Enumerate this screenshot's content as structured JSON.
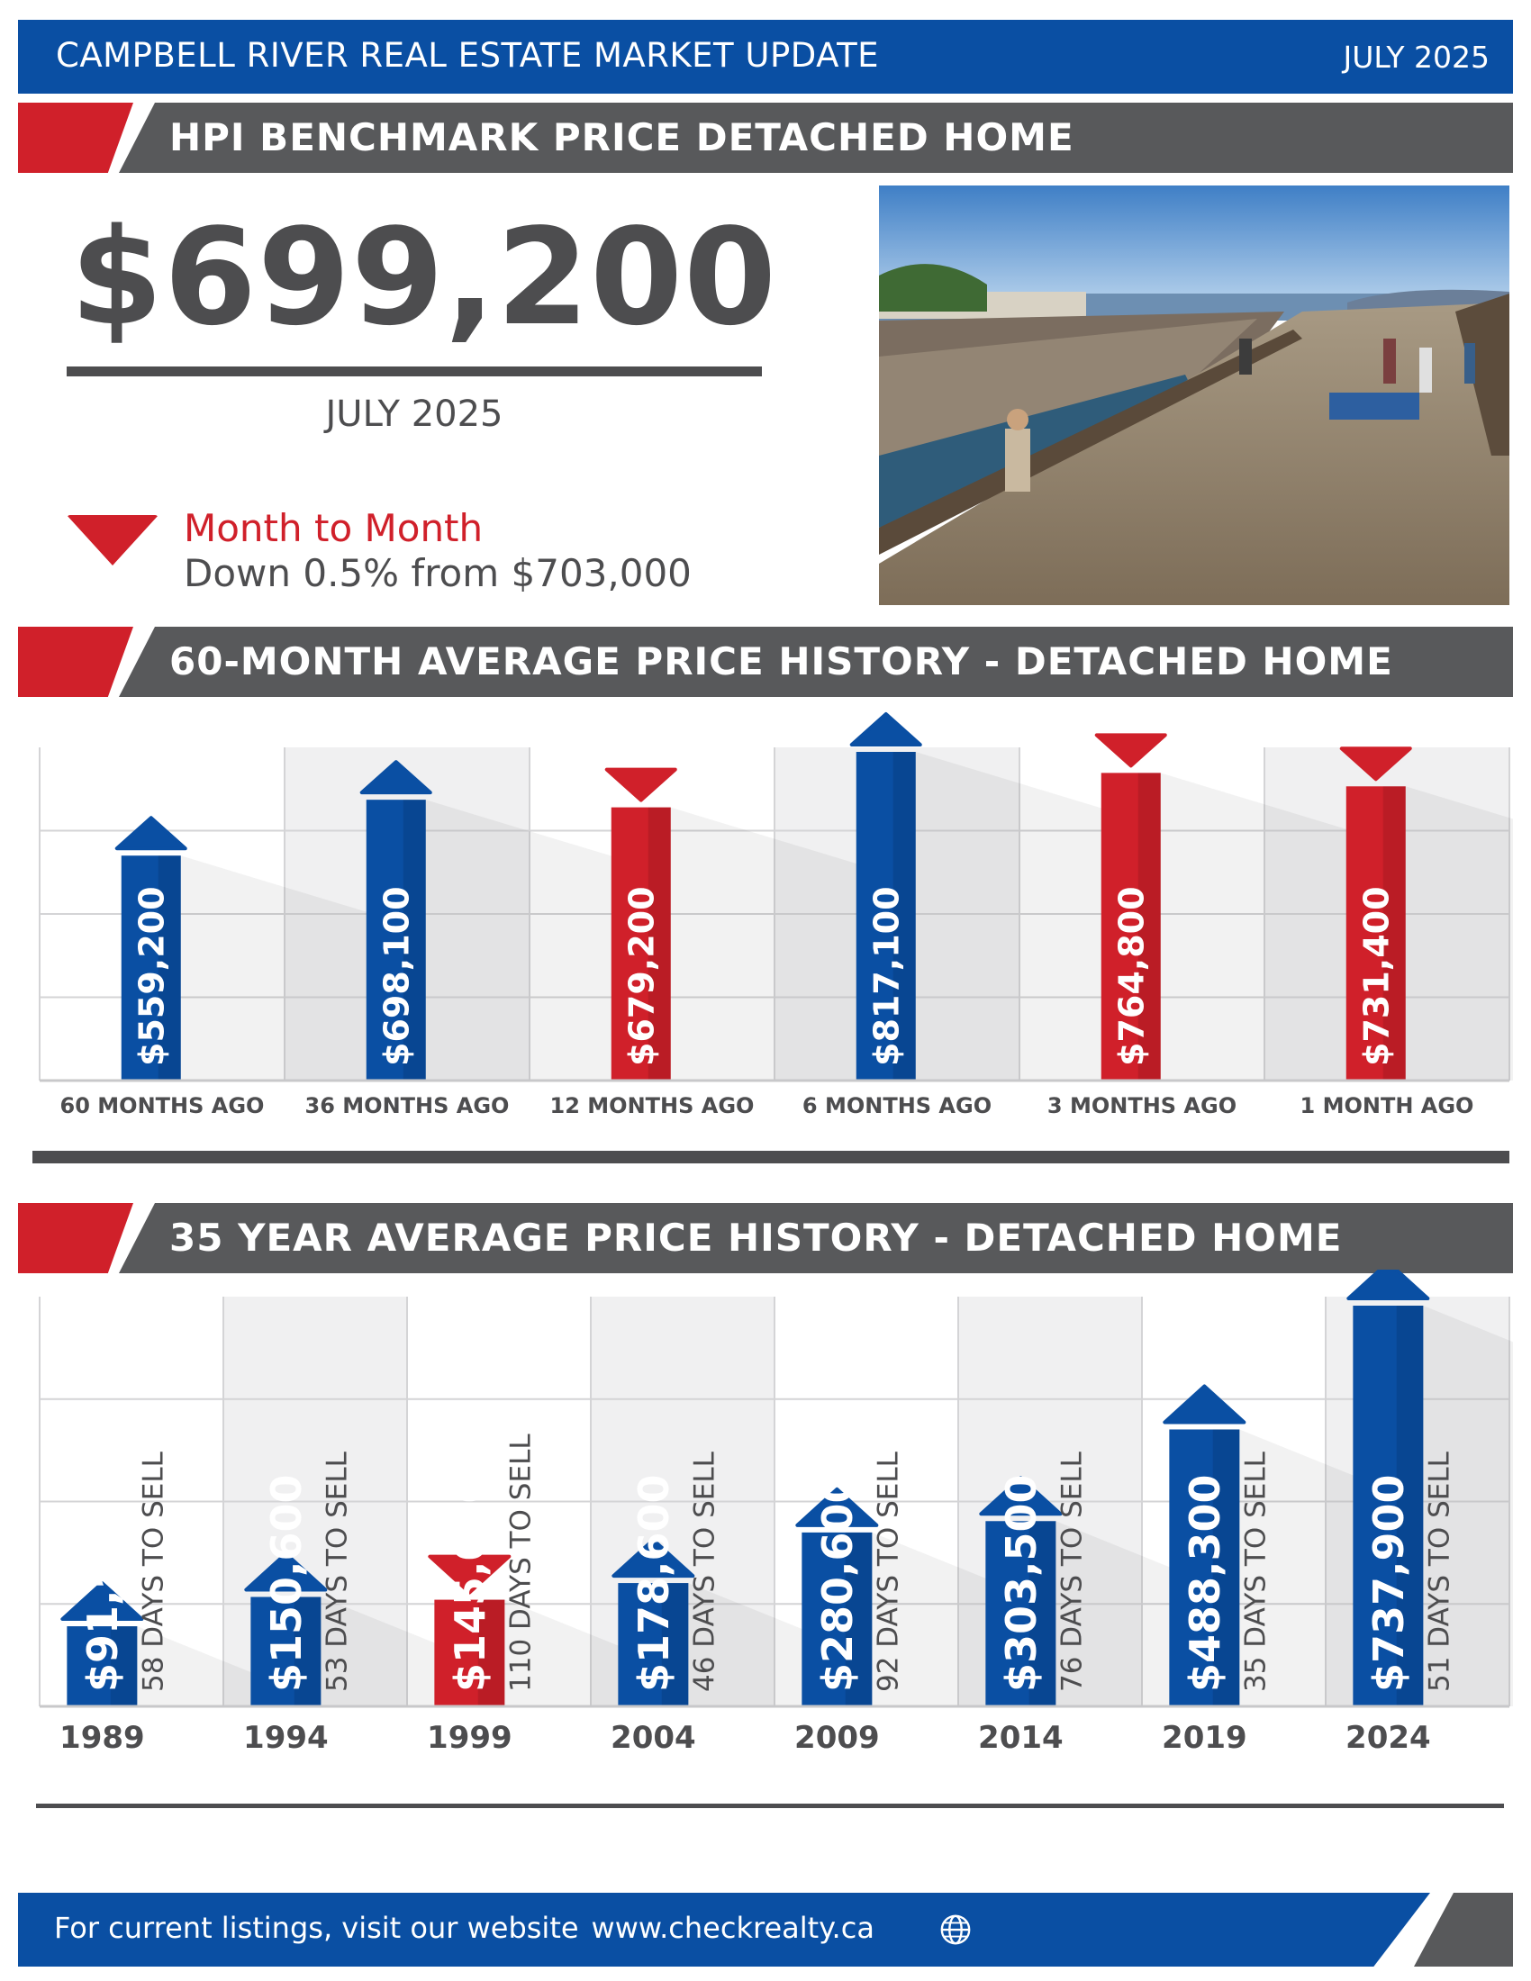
{
  "header": {
    "title": "CAMPBELL RIVER REAL ESTATE MARKET UPDATE",
    "date": "JULY 2025"
  },
  "section1": {
    "title": "HPI BENCHMARK PRICE DETACHED HOME"
  },
  "benchmark": {
    "price": "$699,200",
    "date": "JULY 2025",
    "change_label": "Month to Month",
    "change_text": "Down 0.5% from $703,000",
    "direction": "down"
  },
  "photo": {
    "subject": "pier-boardwalk-photo"
  },
  "section2": {
    "title": "60-MONTH AVERAGE PRICE HISTORY - DETACHED HOME"
  },
  "section3": {
    "title": "35 YEAR AVERAGE PRICE HISTORY - DETACHED HOME"
  },
  "footer": {
    "text": "For current listings, visit our website",
    "url": "www.checkrealty.ca",
    "icon": "globe-icon"
  },
  "colors": {
    "blue": "#0a4fa3",
    "red": "#d0202a",
    "grey": "#58595b"
  },
  "chart_data": [
    {
      "type": "bar",
      "categories": [
        "60 MONTHS AGO",
        "36 MONTHS AGO",
        "12 MONTHS AGO",
        "6 MONTHS AGO",
        "3 MONTHS AGO",
        "1 MONTH AGO"
      ],
      "values": [
        559200,
        698100,
        679200,
        817100,
        764800,
        731400
      ],
      "labels": [
        "$559,200",
        "$698,100",
        "$679,200",
        "$817,100",
        "$764,800",
        "$731,400"
      ],
      "directions": [
        "up",
        "up",
        "down",
        "up",
        "down",
        "down"
      ],
      "grid": true
    },
    {
      "type": "bar",
      "categories": [
        "1989",
        "1994",
        "1999",
        "2004",
        "2009",
        "2014",
        "2019",
        "2024"
      ],
      "values": [
        91500,
        150600,
        145000,
        178600,
        280600,
        303500,
        488300,
        737900
      ],
      "labels": [
        "$91,500",
        "$150,600",
        "$145,000",
        "$178,600",
        "$280,600",
        "$303,500",
        "$488,300",
        "$737,900"
      ],
      "days_to_sell": [
        "58 DAYS TO SELL",
        "53 DAYS TO SELL",
        "110 DAYS TO SELL",
        "46 DAYS TO SELL",
        "92 DAYS TO SELL",
        "76 DAYS TO SELL",
        "35 DAYS TO SELL",
        "51 DAYS TO SELL"
      ],
      "directions": [
        "up",
        "up",
        "down",
        "up",
        "up",
        "up",
        "up",
        "up"
      ],
      "grid": true
    }
  ]
}
